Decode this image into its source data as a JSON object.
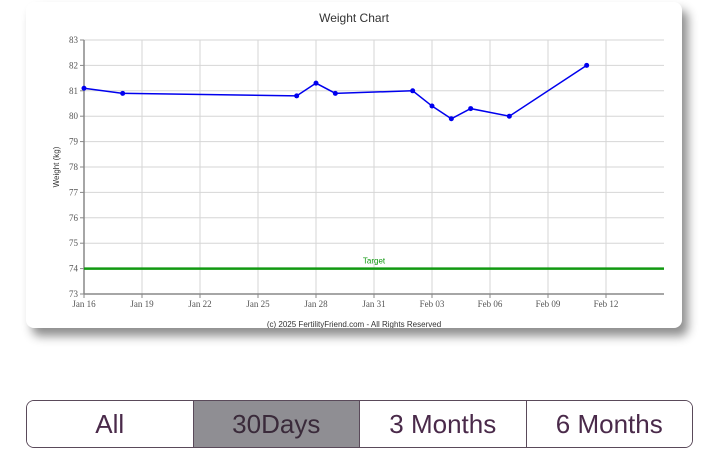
{
  "chart_data": {
    "type": "line",
    "title": "Weight Chart",
    "ylabel": "Weight (kg)",
    "xlabel": "",
    "ylim": [
      73,
      83
    ],
    "yticks": [
      73,
      74,
      75,
      76,
      77,
      78,
      79,
      80,
      81,
      82,
      83
    ],
    "x_tick_labels": [
      "Jan 16",
      "Jan 19",
      "Jan 22",
      "Jan 25",
      "Jan 28",
      "Jan 31",
      "Feb 03",
      "Feb 06",
      "Feb 09",
      "Feb 12"
    ],
    "x_tick_days": [
      0,
      3,
      6,
      9,
      12,
      15,
      18,
      21,
      24,
      27
    ],
    "xlim_days": [
      0,
      30
    ],
    "grid": true,
    "series": [
      {
        "color": "#0000ee",
        "x_days": [
          0,
          2,
          11,
          12,
          13,
          17,
          18,
          19,
          20,
          22,
          26
        ],
        "values": [
          81.1,
          80.9,
          80.8,
          81.3,
          80.9,
          81.0,
          80.4,
          79.9,
          80.3,
          80.0,
          82.0
        ]
      }
    ],
    "target": {
      "label": "Target",
      "value": 74,
      "color": "#119911"
    },
    "footer": "(c) 2025 FertilityFriend.com - All Rights Reserved"
  },
  "range_selector": {
    "buttons": [
      {
        "label": "All"
      },
      {
        "label": "30Days"
      },
      {
        "label": "3 Months"
      },
      {
        "label": "6 Months"
      }
    ],
    "active_label": "30Days"
  }
}
